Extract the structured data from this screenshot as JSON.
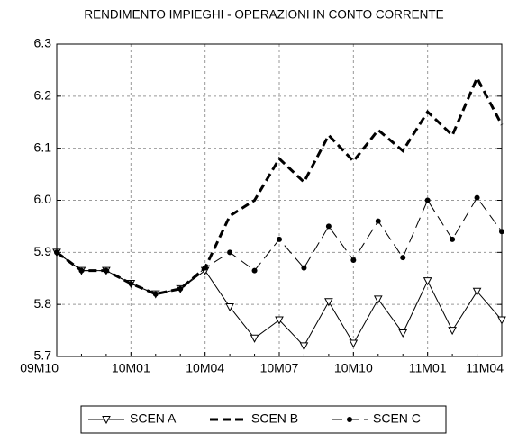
{
  "chart_data": {
    "type": "line",
    "title": "RENDIMENTO IMPIEGHI - OPERAZIONI IN CONTO CORRENTE",
    "categories": [
      "09M10",
      null,
      null,
      "10M01",
      null,
      null,
      "10M04",
      null,
      null,
      "10M07",
      null,
      null,
      "10M10",
      null,
      null,
      "11M01",
      null,
      null,
      "11M04"
    ],
    "series": [
      {
        "name": "SCEN A",
        "color": "#000000",
        "dash": "solid",
        "marker": "triangle-down",
        "width": 1,
        "values": [
          5.9,
          5.865,
          5.865,
          5.84,
          5.82,
          5.83,
          5.865,
          5.795,
          5.735,
          5.77,
          5.72,
          5.805,
          5.725,
          5.81,
          5.745,
          5.845,
          5.75,
          5.825,
          5.77
        ]
      },
      {
        "name": "SCEN B",
        "color": "#000000",
        "dash": "dashed",
        "marker": "none",
        "width": 3,
        "values": [
          5.9,
          5.865,
          5.865,
          5.84,
          5.82,
          5.83,
          5.87,
          5.97,
          6.0,
          6.08,
          6.035,
          6.125,
          6.075,
          6.135,
          6.095,
          6.17,
          6.125,
          6.235,
          6.145
        ]
      },
      {
        "name": "SCEN C",
        "color": "#000000",
        "dash": "long-dash",
        "marker": "circle",
        "width": 1,
        "values": [
          5.9,
          5.865,
          5.865,
          5.84,
          5.82,
          5.83,
          5.87,
          5.9,
          5.865,
          5.925,
          5.87,
          5.95,
          5.885,
          5.96,
          5.89,
          6.0,
          5.925,
          6.005,
          5.94
        ]
      }
    ],
    "ylim": [
      5.7,
      6.3
    ],
    "yticks": [
      5.7,
      5.8,
      5.9,
      {
        "value": 6.0,
        "label": "6.0"
      },
      6.1,
      6.2,
      6.3
    ],
    "grid": true,
    "legend": "bottom"
  }
}
